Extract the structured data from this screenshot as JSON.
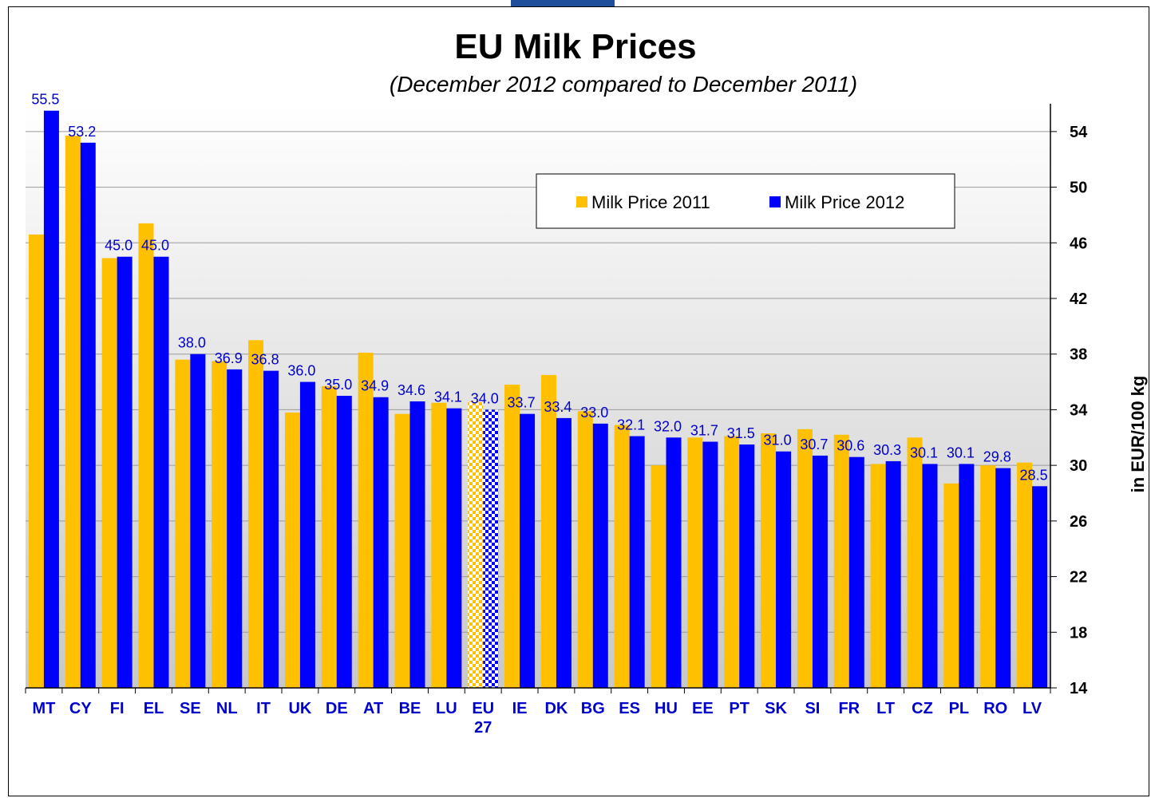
{
  "chart_data": {
    "type": "bar",
    "title": "EU Milk Prices",
    "subtitle": "(December 2012 compared to December 2011)",
    "ylabel": "in EUR/100 kg",
    "xlabel": "",
    "ylim": [
      14,
      56
    ],
    "yticks": [
      14,
      18,
      22,
      26,
      30,
      34,
      38,
      42,
      46,
      50,
      54
    ],
    "y_axis_side": "right",
    "grid": true,
    "legend_position": "top-right",
    "categories": [
      "MT",
      "CY",
      "FI",
      "EL",
      "SE",
      "NL",
      "IT",
      "UK",
      "DE",
      "AT",
      "BE",
      "LU",
      "EU 27",
      "IE",
      "DK",
      "BG",
      "ES",
      "HU",
      "EE",
      "PT",
      "SK",
      "SI",
      "FR",
      "LT",
      "CZ",
      "PL",
      "RO",
      "LV"
    ],
    "highlight_category": "EU 27",
    "series": [
      {
        "name": "Milk Price 2011",
        "color": "#ffc000",
        "values": [
          46.6,
          53.7,
          44.9,
          47.4,
          37.6,
          37.5,
          39.0,
          33.8,
          35.7,
          38.1,
          33.7,
          34.5,
          34.6,
          35.8,
          36.5,
          33.9,
          32.9,
          30.0,
          32.0,
          32.1,
          32.3,
          32.6,
          32.2,
          30.1,
          32.0,
          28.7,
          30.0,
          30.2
        ]
      },
      {
        "name": "Milk Price 2012",
        "color": "#0000ff",
        "values": [
          55.5,
          53.2,
          45.0,
          45.0,
          38.0,
          36.9,
          36.8,
          36.0,
          35.0,
          34.9,
          34.6,
          34.1,
          34.0,
          33.7,
          33.4,
          33.0,
          32.1,
          32.0,
          31.7,
          31.5,
          31.0,
          30.7,
          30.6,
          30.3,
          30.1,
          30.1,
          29.8,
          28.5
        ],
        "data_labels": [
          "55.5",
          "53.2",
          "45.0",
          "45.0",
          "38.0",
          "36.9",
          "36.8",
          "36.0",
          "35.0",
          "34.9",
          "34.6",
          "34.1",
          "34.0",
          "33.7",
          "33.4",
          "33.0",
          "32.1",
          "32.0",
          "31.7",
          "31.5",
          "31.0",
          "30.7",
          "30.6",
          "30.3",
          "30.1",
          "30.1",
          "29.8",
          "28.5"
        ]
      }
    ]
  }
}
